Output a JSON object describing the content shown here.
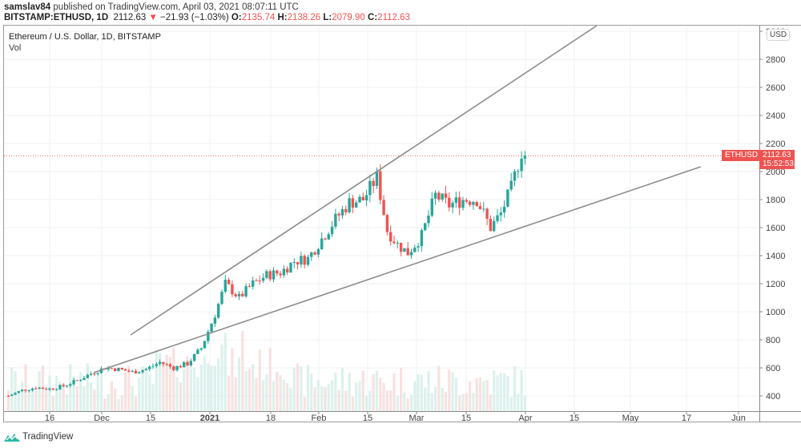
{
  "header": {
    "author": "samslav84",
    "published_text": "published on TradingView.com, April 03, 2021 08:07:11 UTC",
    "symbol": "BITSTAMP:ETHUSD, 1D",
    "last": "2112.63",
    "change_arrow": "▼",
    "change": "−21.93 (−1.03%)",
    "o_label": "O:",
    "o_value": "2135.74",
    "h_label": "H:",
    "h_value": "2138.26",
    "l_label": "L:",
    "l_value": "2079.90",
    "c_label": "C:",
    "c_value": "2112.63"
  },
  "legend": {
    "title": "Ethereum / U.S. Dollar, 1D, BITSTAMP",
    "volume": "Vol"
  },
  "price_axis": {
    "currency": "USD",
    "ticks": [
      "3000",
      "2800",
      "2600",
      "2400",
      "2200",
      "2000",
      "1800",
      "1600",
      "1400",
      "1200",
      "1000",
      "800",
      "600",
      "400"
    ]
  },
  "last_price_label": {
    "symbol": "ETHUSD",
    "price": "2112.63",
    "countdown": "15:52:53"
  },
  "time_axis": {
    "ticks": [
      "16",
      "Dec",
      "15",
      "2021",
      "18",
      "Feb",
      "15",
      "Mar",
      "15",
      "Apr",
      "15",
      "May",
      "17",
      "Jun"
    ]
  },
  "footer": {
    "brand": "TradingView"
  },
  "colors": {
    "up": "#26a69a",
    "down": "#ef5350",
    "trendline": "#8c8c8c",
    "grid": "#eef0f3"
  },
  "chart_data": {
    "type": "candlestick",
    "title": "Ethereum / U.S. Dollar, 1D, BITSTAMP",
    "xlabel": "",
    "ylabel": "USD",
    "ylim": [
      300,
      3050
    ],
    "x_ticks": [
      "16 Nov",
      "Dec",
      "15 Dec",
      "2021",
      "18 Jan",
      "Feb",
      "15 Feb",
      "Mar",
      "15 Mar",
      "Apr",
      "15 Apr",
      "May",
      "17 May",
      "Jun"
    ],
    "y_ticks": [
      400,
      600,
      800,
      1000,
      1200,
      1400,
      1600,
      1800,
      2000,
      2200,
      2400,
      2600,
      2800,
      3000
    ],
    "grid": true,
    "last_close": 2112.63,
    "series": [
      {
        "name": "close (approx, every ~3 days)",
        "x": [
          "2020-11-04",
          "2020-11-08",
          "2020-11-12",
          "2020-11-16",
          "2020-11-20",
          "2020-11-24",
          "2020-11-28",
          "2020-12-02",
          "2020-12-06",
          "2020-12-10",
          "2020-12-14",
          "2020-12-18",
          "2020-12-22",
          "2020-12-26",
          "2020-12-30",
          "2021-01-03",
          "2021-01-06",
          "2021-01-10",
          "2021-01-14",
          "2021-01-18",
          "2021-01-22",
          "2021-01-26",
          "2021-01-30",
          "2021-02-03",
          "2021-02-07",
          "2021-02-11",
          "2021-02-15",
          "2021-02-19",
          "2021-02-22",
          "2021-02-25",
          "2021-02-28",
          "2021-03-04",
          "2021-03-08",
          "2021-03-12",
          "2021-03-16",
          "2021-03-20",
          "2021-03-24",
          "2021-03-27",
          "2021-03-30",
          "2021-04-02",
          "2021-04-03"
        ],
        "values": [
          400,
          440,
          460,
          450,
          470,
          510,
          560,
          600,
          590,
          570,
          590,
          640,
          600,
          630,
          740,
          980,
          1200,
          1100,
          1200,
          1260,
          1280,
          1360,
          1380,
          1520,
          1660,
          1780,
          1800,
          1960,
          1580,
          1480,
          1420,
          1540,
          1830,
          1760,
          1800,
          1800,
          1600,
          1700,
          1880,
          2140,
          2112.63
        ]
      },
      {
        "name": "upper trendline",
        "points": [
          [
            163,
            418
          ],
          [
            745,
            32
          ]
        ]
      },
      {
        "name": "lower trendline",
        "points": [
          [
            117,
            465
          ],
          [
            875,
            208
          ]
        ]
      }
    ],
    "volume": {
      "name": "Vol",
      "peak_date": "2021-01-11"
    }
  }
}
